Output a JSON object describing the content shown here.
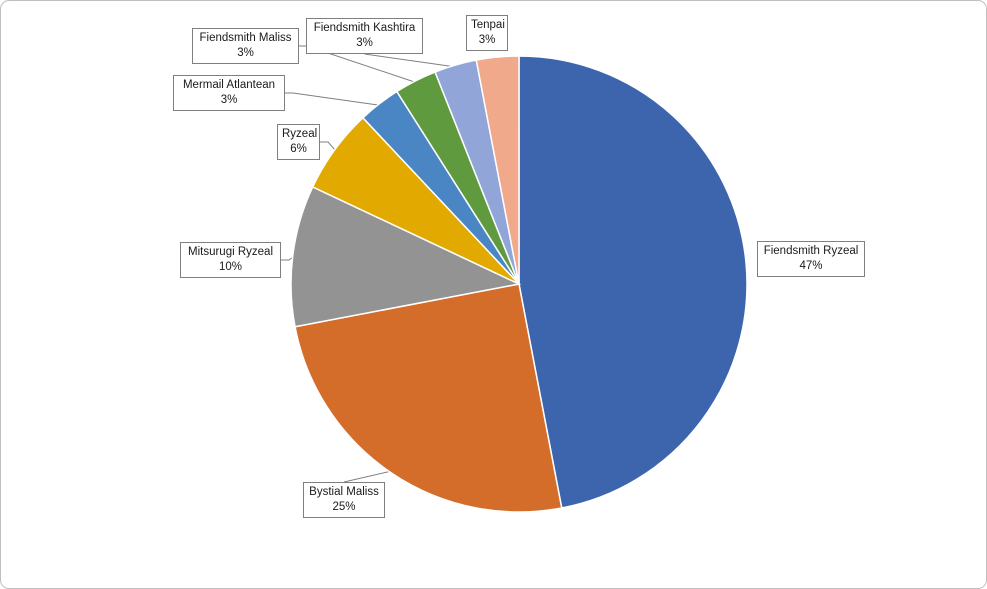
{
  "chart_data": {
    "type": "pie",
    "title": "",
    "start_angle_deg": 0,
    "direction": "clockwise",
    "slices": [
      {
        "label": "Fiendsmith Ryzeal",
        "value": 47,
        "display": "47%",
        "color": "#3d65ae"
      },
      {
        "label": "Bystial Maliss",
        "value": 25,
        "display": "25%",
        "color": "#d46d29"
      },
      {
        "label": "Mitsurugi Ryzeal",
        "value": 10,
        "display": "10%",
        "color": "#939393"
      },
      {
        "label": "Ryzeal",
        "value": 6,
        "display": "6%",
        "color": "#e2aa00"
      },
      {
        "label": "Mermail Atlantean",
        "value": 3,
        "display": "3%",
        "color": "#4a86c3"
      },
      {
        "label": "Fiendsmith Maliss",
        "value": 3,
        "display": "3%",
        "color": "#5f9a3e"
      },
      {
        "label": "Fiendsmith Kashtira",
        "value": 3,
        "display": "3%",
        "color": "#91a5d8"
      },
      {
        "label": "Tenpai",
        "value": 3,
        "display": "3%",
        "color": "#f0a98b"
      }
    ]
  }
}
